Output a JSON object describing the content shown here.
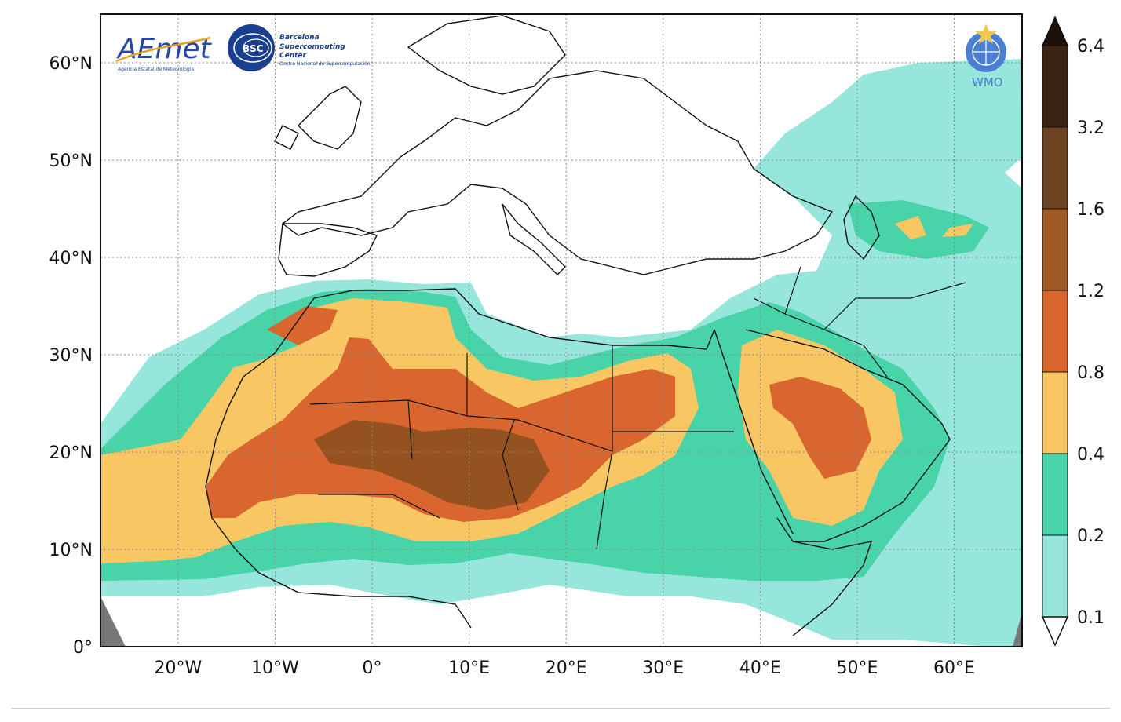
{
  "map": {
    "lon_range": [
      -28,
      67
    ],
    "lat_range": [
      0,
      65
    ],
    "grid": "dotted",
    "lat_ticks": [
      {
        "value": 0,
        "label": "0°"
      },
      {
        "value": 10,
        "label": "10°N"
      },
      {
        "value": 20,
        "label": "20°N"
      },
      {
        "value": 30,
        "label": "30°N"
      },
      {
        "value": 40,
        "label": "40°N"
      },
      {
        "value": 50,
        "label": "50°N"
      },
      {
        "value": 60,
        "label": "60°N"
      }
    ],
    "lon_ticks": [
      {
        "value": -20,
        "label": "20°W"
      },
      {
        "value": -10,
        "label": "10°W"
      },
      {
        "value": 0,
        "label": "0°"
      },
      {
        "value": 10,
        "label": "10°E"
      },
      {
        "value": 20,
        "label": "20°E"
      },
      {
        "value": 30,
        "label": "30°E"
      },
      {
        "value": 40,
        "label": "40°E"
      },
      {
        "value": 50,
        "label": "50°E"
      },
      {
        "value": 60,
        "label": "60°E"
      }
    ]
  },
  "colorbar": {
    "levels": [
      {
        "label": "0.1",
        "color": "#97e6dc"
      },
      {
        "label": "0.2",
        "color": "#48d3a8"
      },
      {
        "label": "0.4",
        "color": "#f8c763"
      },
      {
        "label": "0.8",
        "color": "#d8662e"
      },
      {
        "label": "1.2",
        "color": "#a05a24"
      },
      {
        "label": "1.6",
        "color": "#6c4220"
      },
      {
        "label": "3.2",
        "color": "#3a2414"
      },
      {
        "label": "6.4",
        "color": "#1c1008"
      }
    ],
    "extend": "both"
  },
  "logos": {
    "aemet": {
      "title": "AEmet",
      "subtitle": "Agencia Estatal de Meteorología"
    },
    "bsc": {
      "badge": "BSC",
      "line1": "Barcelona",
      "line2": "Supercomputing",
      "line3": "Center",
      "line4": "Centro Nacional de Supercomputación"
    },
    "wmo": {
      "label": "WMO"
    }
  }
}
